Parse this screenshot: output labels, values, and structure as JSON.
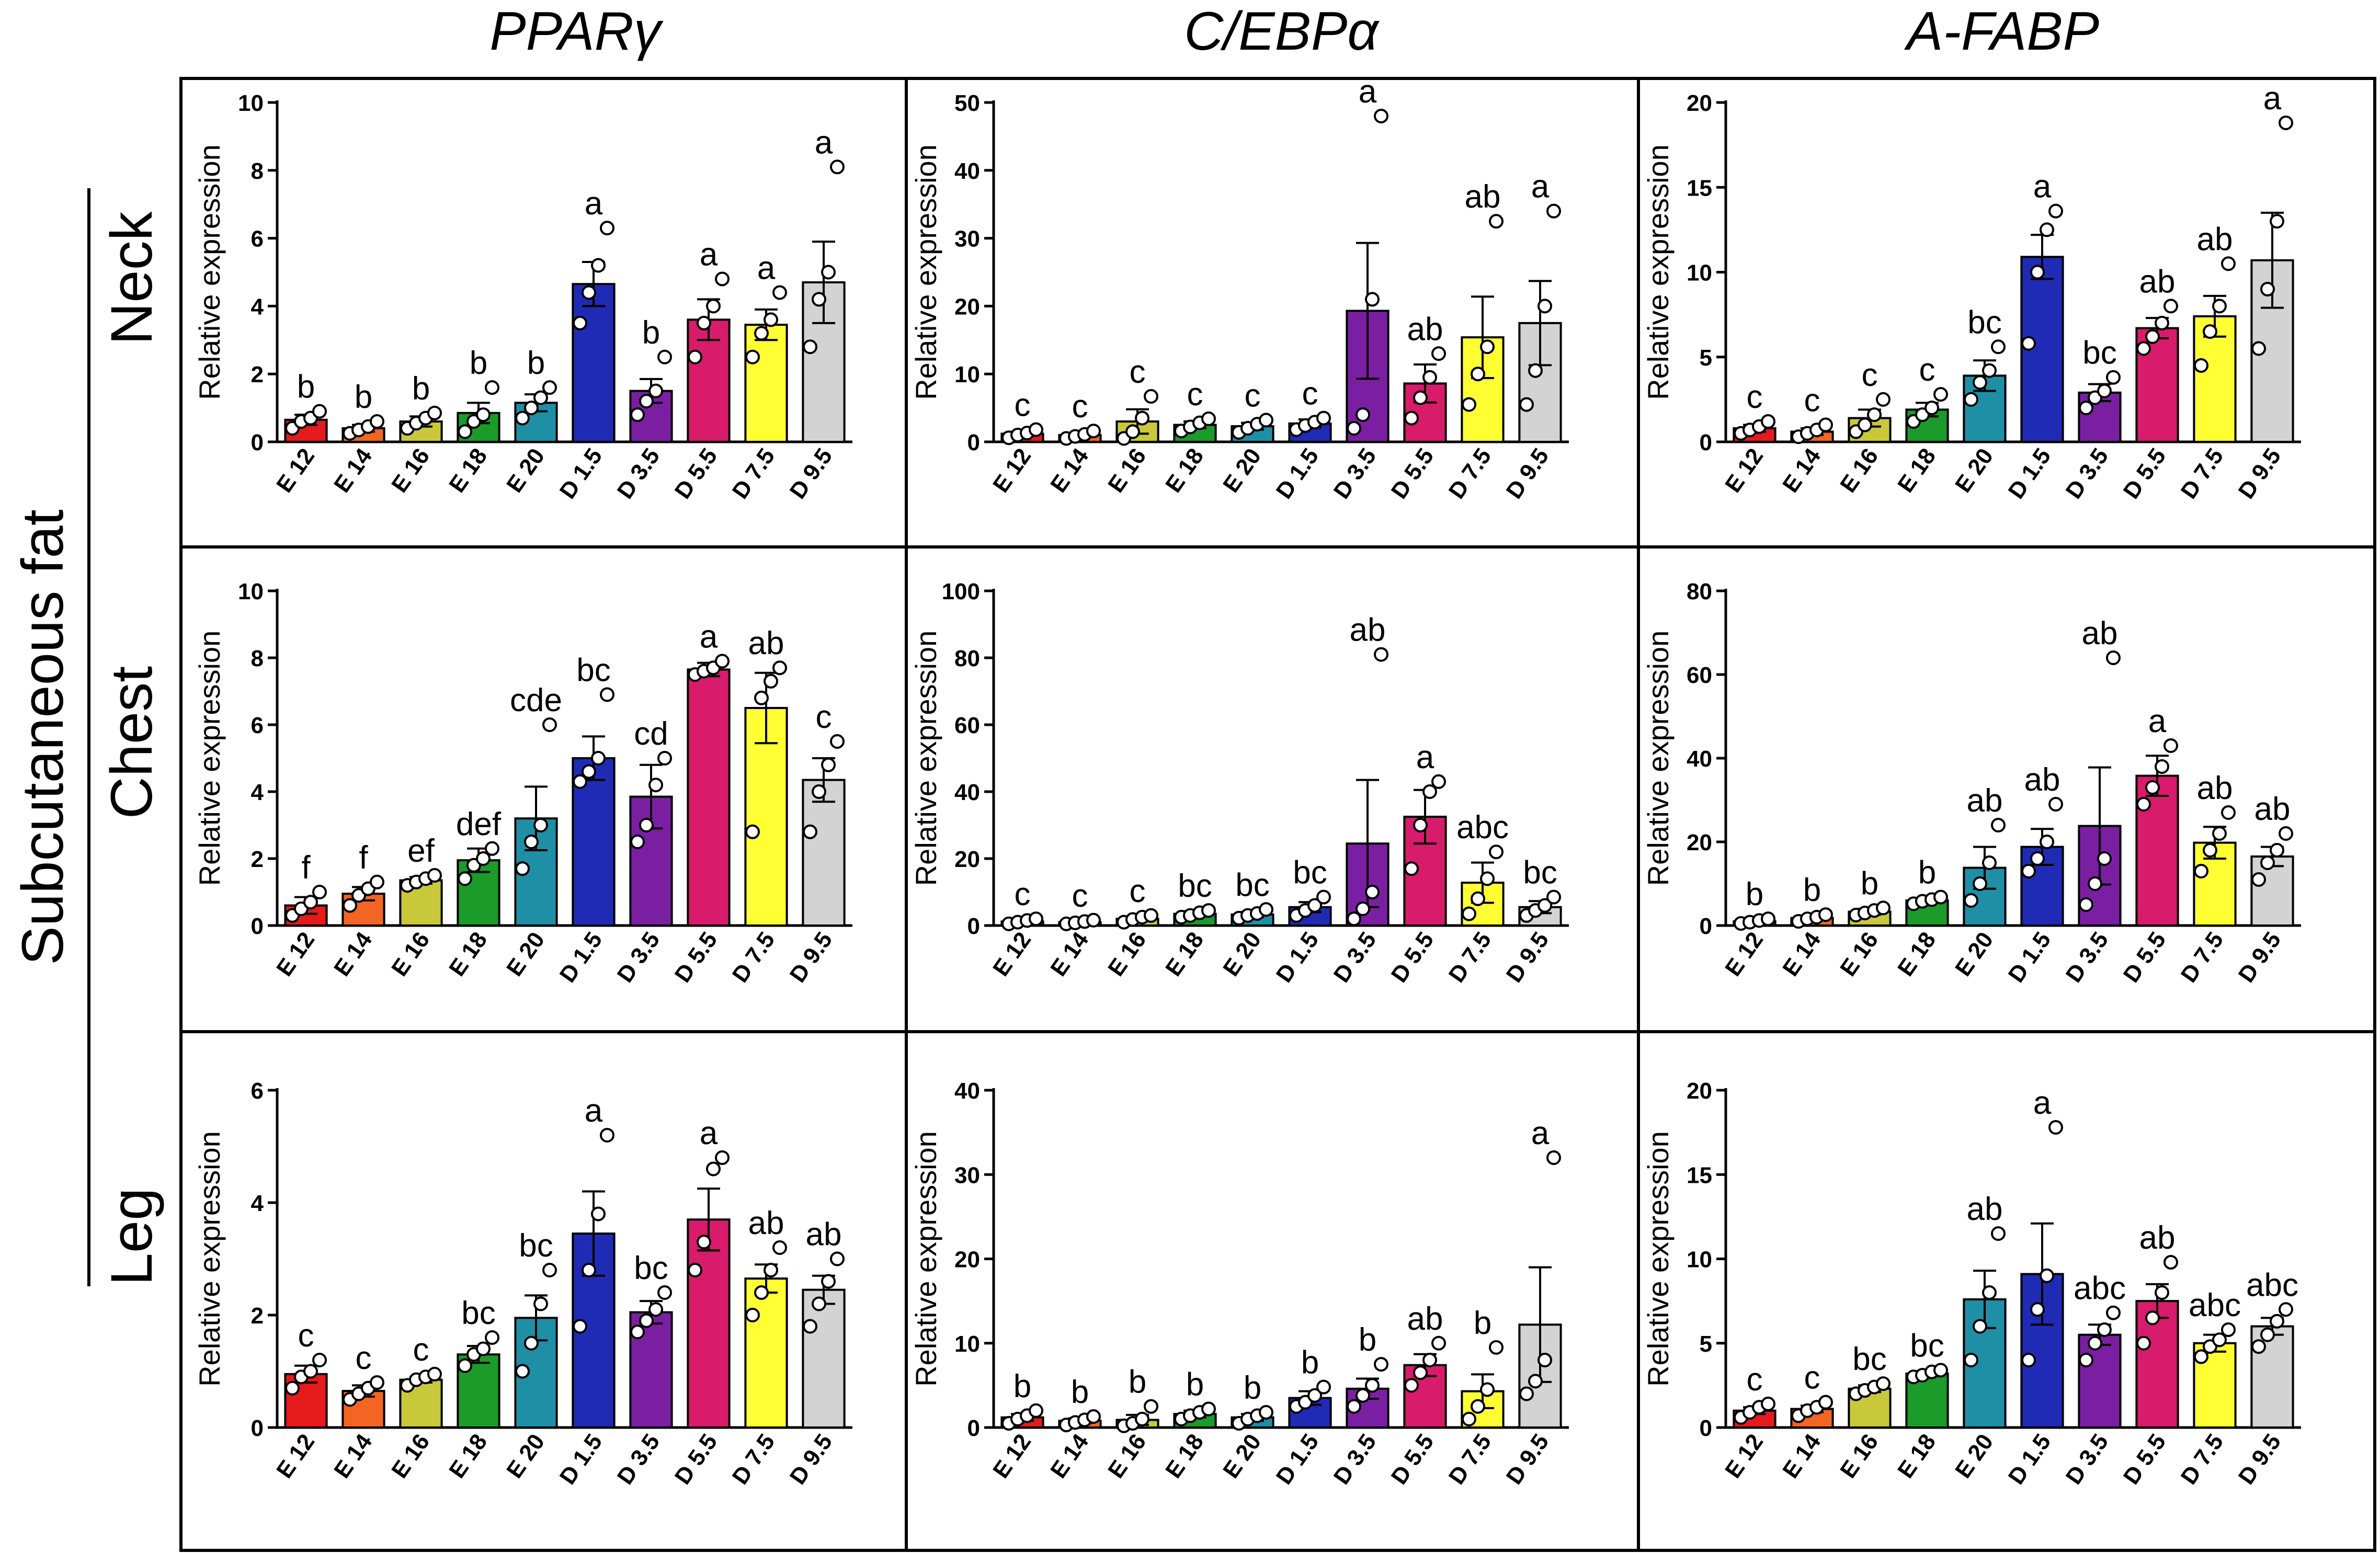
{
  "figure": {
    "row_group_label": "Subcutaneous fat",
    "column_titles": [
      "PPARγ",
      "C/EBPα",
      "A-FABP"
    ],
    "row_titles": [
      "Neck",
      "Chest",
      "Leg"
    ],
    "categories": [
      "E 12",
      "E 14",
      "E 16",
      "E 18",
      "E 20",
      "D 1.5",
      "D 3.5",
      "D 5.5",
      "D 7.5",
      "D 9.5"
    ],
    "bar_colors": [
      "#e41a1c",
      "#f26522",
      "#c8c83a",
      "#1a9b2a",
      "#1f8fa6",
      "#1f2bb5",
      "#7b1fa2",
      "#d81b6b",
      "#ffff33",
      "#d3d3d3"
    ],
    "ylabel": "Relative expression"
  },
  "chart_data": [
    {
      "type": "bar",
      "gene": "PPARγ",
      "tissue": "Neck",
      "ylim": [
        0,
        10
      ],
      "yticks": [
        0,
        2,
        4,
        6,
        8,
        10
      ],
      "values": [
        0.65,
        0.4,
        0.6,
        0.85,
        1.15,
        4.65,
        1.5,
        3.6,
        3.45,
        4.7
      ],
      "errors": [
        0.15,
        0.1,
        0.15,
        0.3,
        0.25,
        0.65,
        0.35,
        0.6,
        0.45,
        1.2
      ],
      "points": [
        [
          0.4,
          0.6,
          0.7,
          0.9
        ],
        [
          0.25,
          0.35,
          0.45,
          0.6
        ],
        [
          0.4,
          0.55,
          0.7,
          0.85
        ],
        [
          0.3,
          0.6,
          0.8,
          1.6
        ],
        [
          0.7,
          1.0,
          1.3,
          1.6
        ],
        [
          3.5,
          4.4,
          5.2,
          6.3
        ],
        [
          0.8,
          1.2,
          1.5,
          2.5
        ],
        [
          2.5,
          3.5,
          4.0,
          4.8
        ],
        [
          2.5,
          3.2,
          3.6,
          4.4
        ],
        [
          2.8,
          4.2,
          5.0,
          8.1
        ]
      ],
      "letters": [
        "b",
        "b",
        "b",
        "b",
        "b",
        "a",
        "b",
        "a",
        "a",
        "a"
      ]
    },
    {
      "type": "bar",
      "gene": "C/EBPα",
      "tissue": "Neck",
      "ylim": [
        0,
        50
      ],
      "yticks": [
        0,
        10,
        20,
        30,
        40,
        50
      ],
      "values": [
        1.2,
        1.0,
        3.0,
        2.5,
        2.3,
        2.7,
        19.3,
        8.6,
        15.4,
        17.5
      ],
      "errors": [
        0.3,
        0.3,
        1.8,
        0.5,
        0.5,
        0.6,
        10.0,
        2.8,
        6.0,
        6.2
      ],
      "points": [
        [
          0.6,
          1.0,
          1.3,
          1.8
        ],
        [
          0.5,
          0.8,
          1.1,
          1.6
        ],
        [
          0.5,
          1.5,
          3.5,
          6.7
        ],
        [
          1.6,
          2.2,
          2.8,
          3.4
        ],
        [
          1.4,
          2.0,
          2.6,
          3.2
        ],
        [
          1.8,
          2.4,
          2.9,
          3.5
        ],
        [
          2.0,
          4.0,
          21.0,
          48.0
        ],
        [
          3.5,
          6.5,
          9.5,
          13.0
        ],
        [
          5.5,
          10.0,
          14.0,
          32.5
        ],
        [
          5.5,
          10.5,
          20.0,
          34.0
        ]
      ],
      "letters": [
        "c",
        "c",
        "c",
        "c",
        "c",
        "c",
        "a",
        "ab",
        "ab",
        "a"
      ]
    },
    {
      "type": "bar",
      "gene": "A-FABP",
      "tissue": "Neck",
      "ylim": [
        0,
        20
      ],
      "yticks": [
        0,
        5,
        10,
        15,
        20
      ],
      "values": [
        0.8,
        0.6,
        1.4,
        1.9,
        3.9,
        10.9,
        2.9,
        6.7,
        7.4,
        10.7
      ],
      "errors": [
        0.2,
        0.2,
        0.5,
        0.4,
        0.9,
        1.3,
        0.5,
        0.6,
        1.2,
        2.8
      ],
      "points": [
        [
          0.5,
          0.7,
          0.9,
          1.2
        ],
        [
          0.3,
          0.5,
          0.7,
          1.0
        ],
        [
          0.6,
          1.0,
          1.6,
          2.5
        ],
        [
          1.2,
          1.6,
          2.0,
          2.8
        ],
        [
          2.5,
          3.5,
          4.2,
          5.6
        ],
        [
          5.8,
          10.0,
          12.5,
          13.6
        ],
        [
          2.0,
          2.6,
          3.0,
          3.8
        ],
        [
          5.5,
          6.2,
          7.0,
          8.0
        ],
        [
          4.5,
          6.5,
          8.0,
          10.5
        ],
        [
          5.5,
          9.0,
          13.0,
          18.8
        ]
      ],
      "letters": [
        "c",
        "c",
        "c",
        "c",
        "bc",
        "a",
        "bc",
        "ab",
        "ab",
        "a"
      ]
    },
    {
      "type": "bar",
      "gene": "PPARγ",
      "tissue": "Chest",
      "ylim": [
        0,
        10
      ],
      "yticks": [
        0,
        2,
        4,
        6,
        8,
        10
      ],
      "values": [
        0.6,
        0.95,
        1.35,
        1.95,
        3.2,
        5.0,
        3.85,
        7.65,
        6.5,
        4.35
      ],
      "errors": [
        0.25,
        0.2,
        0.1,
        0.35,
        0.95,
        0.65,
        0.95,
        0.2,
        1.05,
        0.65
      ],
      "points": [
        [
          0.3,
          0.5,
          0.7,
          1.0
        ],
        [
          0.6,
          0.9,
          1.1,
          1.3
        ],
        [
          1.2,
          1.3,
          1.4,
          1.5
        ],
        [
          1.4,
          1.8,
          2.0,
          2.3
        ],
        [
          1.7,
          2.5,
          3.0,
          6.0
        ],
        [
          4.3,
          4.6,
          5.0,
          6.9
        ],
        [
          2.5,
          3.0,
          4.2,
          5.0
        ],
        [
          7.5,
          7.6,
          7.7,
          7.9
        ],
        [
          2.8,
          6.8,
          7.3,
          7.7
        ],
        [
          2.8,
          4.0,
          4.8,
          5.5
        ]
      ],
      "letters": [
        "f",
        "f",
        "ef",
        "def",
        "cde",
        "bc",
        "cd",
        "a",
        "ab",
        "c"
      ]
    },
    {
      "type": "bar",
      "gene": "C/EBPα",
      "tissue": "Chest",
      "ylim": [
        0,
        100
      ],
      "yticks": [
        0,
        20,
        40,
        60,
        80,
        100
      ],
      "values": [
        1.2,
        1.0,
        2.0,
        3.5,
        3.3,
        5.5,
        24.5,
        32.5,
        12.8,
        5.5
      ],
      "errors": [
        0.4,
        0.3,
        0.7,
        0.8,
        0.8,
        1.5,
        19.0,
        8.0,
        6.0,
        1.8
      ],
      "points": [
        [
          0.5,
          1.0,
          1.5,
          2.0
        ],
        [
          0.5,
          0.8,
          1.2,
          1.6
        ],
        [
          1.0,
          1.8,
          2.5,
          3.0
        ],
        [
          2.5,
          3.0,
          3.8,
          4.5
        ],
        [
          2.2,
          3.0,
          3.6,
          4.8
        ],
        [
          3.0,
          4.5,
          6.0,
          8.5
        ],
        [
          2.0,
          5.0,
          10.0,
          81.0
        ],
        [
          17.0,
          30.0,
          40.0,
          43.0
        ],
        [
          3.5,
          8.0,
          14.0,
          22.0
        ],
        [
          3.0,
          4.5,
          6.0,
          8.5
        ]
      ],
      "letters": [
        "c",
        "c",
        "c",
        "bc",
        "bc",
        "bc",
        "ab",
        "a",
        "abc",
        "bc"
      ]
    },
    {
      "type": "bar",
      "gene": "A-FABP",
      "tissue": "Chest",
      "ylim": [
        0,
        80
      ],
      "yticks": [
        0,
        20,
        40,
        60,
        80
      ],
      "values": [
        1.0,
        1.8,
        3.3,
        6.0,
        13.8,
        18.8,
        23.8,
        35.8,
        19.8,
        16.5
      ],
      "errors": [
        0.4,
        0.5,
        0.7,
        0.6,
        5.0,
        4.3,
        14.0,
        4.8,
        3.8,
        2.3
      ],
      "points": [
        [
          0.5,
          0.8,
          1.2,
          1.6
        ],
        [
          1.0,
          1.6,
          2.0,
          2.6
        ],
        [
          2.5,
          3.0,
          3.6,
          4.2
        ],
        [
          5.2,
          5.8,
          6.2,
          6.8
        ],
        [
          6.0,
          10.0,
          15.0,
          24.0
        ],
        [
          13.0,
          16.0,
          20.0,
          29.0
        ],
        [
          5.0,
          10.0,
          16.0,
          64.0
        ],
        [
          29.0,
          33.0,
          38.0,
          43.0
        ],
        [
          13.0,
          18.0,
          22.0,
          27.0
        ],
        [
          11.0,
          15.0,
          18.0,
          22.0
        ]
      ],
      "letters": [
        "b",
        "b",
        "b",
        "b",
        "ab",
        "ab",
        "ab",
        "a",
        "ab",
        "ab"
      ]
    },
    {
      "type": "bar",
      "gene": "PPARγ",
      "tissue": "Leg",
      "ylim": [
        0,
        6
      ],
      "yticks": [
        0,
        2,
        4,
        6
      ],
      "values": [
        0.95,
        0.65,
        0.85,
        1.3,
        1.95,
        3.45,
        2.05,
        3.7,
        2.65,
        2.45
      ],
      "errors": [
        0.15,
        0.1,
        0.05,
        0.15,
        0.4,
        0.75,
        0.2,
        0.55,
        0.25,
        0.25
      ],
      "points": [
        [
          0.7,
          0.9,
          1.0,
          1.2
        ],
        [
          0.5,
          0.6,
          0.7,
          0.8
        ],
        [
          0.75,
          0.85,
          0.9,
          0.95
        ],
        [
          1.1,
          1.3,
          1.4,
          1.6
        ],
        [
          1.0,
          1.5,
          2.2,
          2.8
        ],
        [
          1.8,
          2.8,
          3.8,
          5.2
        ],
        [
          1.7,
          1.9,
          2.1,
          2.4
        ],
        [
          2.8,
          3.3,
          4.6,
          4.8
        ],
        [
          2.0,
          2.4,
          2.8,
          3.2
        ],
        [
          1.8,
          2.2,
          2.6,
          3.0
        ]
      ],
      "letters": [
        "c",
        "c",
        "c",
        "bc",
        "bc",
        "a",
        "bc",
        "a",
        "ab",
        "ab"
      ]
    },
    {
      "type": "bar",
      "gene": "C/EBPα",
      "tissue": "Leg",
      "ylim": [
        0,
        40
      ],
      "yticks": [
        0,
        10,
        20,
        30,
        40
      ],
      "values": [
        1.2,
        0.8,
        0.9,
        1.6,
        1.2,
        3.5,
        4.6,
        7.4,
        4.3,
        12.2
      ],
      "errors": [
        0.4,
        0.3,
        0.6,
        0.4,
        0.4,
        0.8,
        1.2,
        1.3,
        2.0,
        6.8
      ],
      "points": [
        [
          0.5,
          1.0,
          1.4,
          2.0
        ],
        [
          0.3,
          0.6,
          0.9,
          1.3
        ],
        [
          0.2,
          0.5,
          1.0,
          2.5
        ],
        [
          1.0,
          1.4,
          1.8,
          2.2
        ],
        [
          0.5,
          1.0,
          1.4,
          1.8
        ],
        [
          2.5,
          3.0,
          3.8,
          4.8
        ],
        [
          2.5,
          3.8,
          5.0,
          7.5
        ],
        [
          5.0,
          6.5,
          8.0,
          10.0
        ],
        [
          1.0,
          2.5,
          4.5,
          9.5
        ],
        [
          4.0,
          5.5,
          8.0,
          32.0
        ]
      ],
      "letters": [
        "b",
        "b",
        "b",
        "b",
        "b",
        "b",
        "b",
        "ab",
        "b",
        "a"
      ]
    },
    {
      "type": "bar",
      "gene": "A-FABP",
      "tissue": "Leg",
      "ylim": [
        0,
        20
      ],
      "yticks": [
        0,
        5,
        10,
        15,
        20
      ],
      "values": [
        1.0,
        1.1,
        2.3,
        3.2,
        7.6,
        9.1,
        5.5,
        7.5,
        5.0,
        6.0
      ],
      "errors": [
        0.2,
        0.2,
        0.2,
        0.15,
        1.7,
        3.0,
        0.6,
        1.0,
        0.5,
        0.5
      ],
      "points": [
        [
          0.6,
          0.9,
          1.2,
          1.4
        ],
        [
          0.7,
          1.0,
          1.2,
          1.5
        ],
        [
          2.0,
          2.2,
          2.4,
          2.6
        ],
        [
          3.0,
          3.1,
          3.3,
          3.4
        ],
        [
          4.0,
          6.0,
          8.0,
          11.5
        ],
        [
          4.0,
          7.0,
          9.0,
          17.8
        ],
        [
          4.0,
          5.0,
          5.8,
          6.8
        ],
        [
          5.0,
          6.5,
          8.0,
          9.8
        ],
        [
          4.2,
          4.8,
          5.2,
          5.8
        ],
        [
          4.8,
          5.5,
          6.3,
          7.0
        ]
      ],
      "letters": [
        "c",
        "c",
        "bc",
        "bc",
        "ab",
        "a",
        "abc",
        "ab",
        "abc",
        "abc"
      ]
    }
  ]
}
